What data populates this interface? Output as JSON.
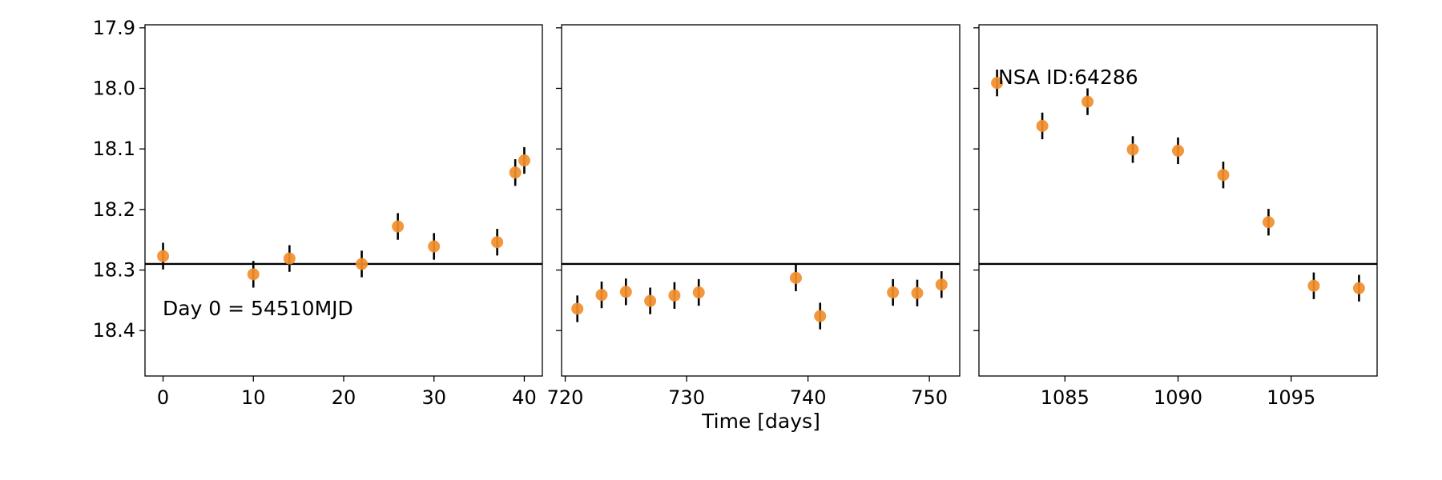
{
  "chart_data": {
    "type": "scatter",
    "xlabel": "Time [days]",
    "ylabel": "",
    "y_inverted": true,
    "ylim": [
      18.475,
      17.895
    ],
    "ytick_labels": [
      "17.9",
      "18.0",
      "18.1",
      "18.2",
      "18.3",
      "18.4"
    ],
    "reference_line_y": 18.29,
    "marker_color": "#f28e2b",
    "errorbar_color": "#000000",
    "panels": [
      {
        "xlim": [
          -2,
          42
        ],
        "xticks": [
          0,
          10,
          20,
          30,
          40
        ],
        "annotation": "Day 0 = 54510MJD",
        "points": [
          {
            "x": 0,
            "y": 18.277,
            "err": 0.022
          },
          {
            "x": 10,
            "y": 18.307,
            "err": 0.022
          },
          {
            "x": 14,
            "y": 18.281,
            "err": 0.022
          },
          {
            "x": 22,
            "y": 18.29,
            "err": 0.022
          },
          {
            "x": 26,
            "y": 18.228,
            "err": 0.022
          },
          {
            "x": 30,
            "y": 18.261,
            "err": 0.022
          },
          {
            "x": 37,
            "y": 18.254,
            "err": 0.022
          },
          {
            "x": 39,
            "y": 18.139,
            "err": 0.022
          },
          {
            "x": 40,
            "y": 18.119,
            "err": 0.022
          }
        ]
      },
      {
        "xlim": [
          719.7,
          752.5
        ],
        "xticks": [
          720,
          730,
          740,
          750
        ],
        "points": [
          {
            "x": 721,
            "y": 18.364,
            "err": 0.022
          },
          {
            "x": 723,
            "y": 18.341,
            "err": 0.022
          },
          {
            "x": 725,
            "y": 18.336,
            "err": 0.022
          },
          {
            "x": 727,
            "y": 18.351,
            "err": 0.022
          },
          {
            "x": 729,
            "y": 18.342,
            "err": 0.022
          },
          {
            "x": 731,
            "y": 18.337,
            "err": 0.022
          },
          {
            "x": 739,
            "y": 18.313,
            "err": 0.022
          },
          {
            "x": 741,
            "y": 18.376,
            "err": 0.022
          },
          {
            "x": 747,
            "y": 18.337,
            "err": 0.022
          },
          {
            "x": 749,
            "y": 18.338,
            "err": 0.022
          },
          {
            "x": 751,
            "y": 18.324,
            "err": 0.022
          }
        ]
      },
      {
        "xlim": [
          1081.2,
          1098.8
        ],
        "xticks": [
          1085,
          1090,
          1095
        ],
        "annotation": "NSA ID:64286",
        "points": [
          {
            "x": 1082,
            "y": 17.991,
            "err": 0.022
          },
          {
            "x": 1084,
            "y": 18.062,
            "err": 0.022
          },
          {
            "x": 1086,
            "y": 18.022,
            "err": 0.022
          },
          {
            "x": 1088,
            "y": 18.101,
            "err": 0.022
          },
          {
            "x": 1090,
            "y": 18.103,
            "err": 0.022
          },
          {
            "x": 1092,
            "y": 18.143,
            "err": 0.022
          },
          {
            "x": 1094,
            "y": 18.221,
            "err": 0.022
          },
          {
            "x": 1096,
            "y": 18.326,
            "err": 0.022
          },
          {
            "x": 1098,
            "y": 18.33,
            "err": 0.022
          }
        ]
      }
    ]
  }
}
